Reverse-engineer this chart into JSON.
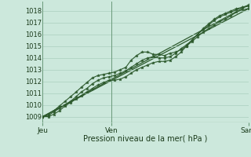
{
  "xlabel": "Pression niveau de la mer( hPa )",
  "bg_color": "#cce8dc",
  "grid_color": "#aacfbe",
  "line_color": "#2d5a2d",
  "ylim": [
    1008.5,
    1018.8
  ],
  "xlim": [
    0,
    48
  ],
  "yticks": [
    1009,
    1010,
    1011,
    1012,
    1013,
    1014,
    1015,
    1016,
    1017,
    1018
  ],
  "xtick_positions": [
    0,
    16,
    48
  ],
  "xtick_labels": [
    "Jeu",
    "Ven",
    "Sam"
  ],
  "vline_positions": [
    0,
    16,
    48
  ],
  "line1_x": [
    0,
    1.3,
    2.6,
    3.9,
    5.2,
    6.5,
    7.8,
    9.0,
    10.3,
    11.6,
    12.9,
    14.2,
    15.5,
    16.8,
    18.1,
    19.4,
    20.6,
    21.9,
    23.2,
    24.5,
    25.8,
    27.1,
    28.4,
    29.7,
    31.0,
    32.3,
    33.5,
    34.8,
    36.1,
    37.4,
    38.7,
    40.0,
    41.3,
    42.6,
    43.9,
    45.2,
    46.5,
    48.0
  ],
  "line1_y": [
    1009.0,
    1009.2,
    1009.5,
    1009.9,
    1010.3,
    1010.7,
    1011.1,
    1011.5,
    1011.9,
    1012.3,
    1012.5,
    1012.6,
    1012.7,
    1012.8,
    1013.0,
    1013.2,
    1013.8,
    1014.2,
    1014.5,
    1014.5,
    1014.3,
    1014.3,
    1014.2,
    1014.4,
    1014.5,
    1014.7,
    1015.0,
    1015.4,
    1015.8,
    1016.2,
    1016.5,
    1016.8,
    1017.1,
    1017.3,
    1017.6,
    1017.9,
    1018.1,
    1018.2
  ],
  "line2_x": [
    0,
    1.3,
    2.6,
    3.9,
    5.2,
    6.5,
    7.8,
    9.0,
    10.3,
    11.6,
    12.9,
    14.2,
    15.5,
    16.8,
    18.1,
    19.4,
    20.6,
    21.9,
    23.2,
    24.5,
    25.8,
    27.1,
    28.4,
    29.7,
    31.0,
    32.3,
    33.5,
    34.8,
    36.1,
    37.4,
    38.7,
    40.0,
    41.3,
    42.6,
    43.9,
    45.2,
    46.5,
    48.0
  ],
  "line2_y": [
    1009.0,
    1009.1,
    1009.4,
    1009.7,
    1010.0,
    1010.3,
    1010.7,
    1011.1,
    1011.4,
    1011.8,
    1012.1,
    1012.3,
    1012.4,
    1012.5,
    1012.7,
    1012.9,
    1013.2,
    1013.5,
    1013.8,
    1014.0,
    1014.1,
    1014.0,
    1014.0,
    1014.1,
    1014.4,
    1014.8,
    1015.1,
    1015.5,
    1016.0,
    1016.4,
    1016.8,
    1017.2,
    1017.5,
    1017.7,
    1017.9,
    1018.1,
    1018.3,
    1018.4
  ],
  "line3_x": [
    0,
    1.3,
    2.6,
    3.9,
    5.2,
    6.5,
    7.8,
    9.0,
    10.3,
    11.6,
    12.9,
    14.2,
    15.5,
    16.8,
    18.1,
    19.4,
    20.6,
    21.9,
    23.2,
    24.5,
    25.8,
    27.1,
    28.4,
    29.7,
    31.0,
    32.3,
    33.5,
    34.8,
    36.1,
    37.4,
    38.7,
    40.0,
    41.3,
    42.6,
    43.9,
    45.2,
    46.5,
    48.0
  ],
  "line3_y": [
    1009.0,
    1009.0,
    1009.2,
    1009.5,
    1009.9,
    1010.2,
    1010.5,
    1010.8,
    1011.1,
    1011.4,
    1011.7,
    1011.9,
    1012.1,
    1012.1,
    1012.2,
    1012.4,
    1012.7,
    1013.0,
    1013.2,
    1013.4,
    1013.6,
    1013.7,
    1013.7,
    1013.8,
    1014.1,
    1014.5,
    1015.0,
    1015.5,
    1016.0,
    1016.5,
    1016.9,
    1017.3,
    1017.6,
    1017.8,
    1018.0,
    1018.2,
    1018.3,
    1018.5
  ],
  "env_line1": [
    [
      0,
      48
    ],
    [
      1009.0,
      1018.5
    ]
  ],
  "env_line2": [
    [
      0,
      48
    ],
    [
      1009.0,
      1018.2
    ]
  ]
}
